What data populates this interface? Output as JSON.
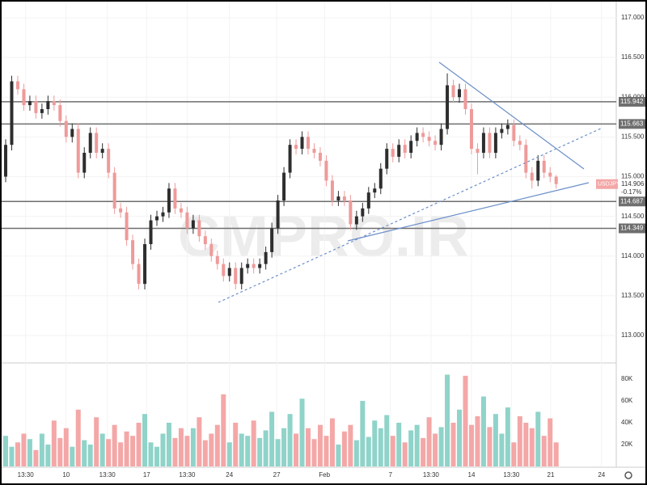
{
  "chart_data": {
    "type": "candlestick",
    "symbol": "USDJPY",
    "last_label": "114.906",
    "change_label": "-0.17%",
    "watermark": "CMPRO.IR",
    "open": [
      115.0,
      115.4,
      116.2,
      116.1,
      115.9,
      115.95,
      115.8,
      115.85,
      115.95,
      115.9,
      115.7,
      115.5,
      115.6,
      115.05,
      115.3,
      115.55,
      115.3,
      115.35,
      115.05,
      114.6,
      114.55,
      114.2,
      113.9,
      113.65,
      114.15,
      114.45,
      114.5,
      114.55,
      114.85,
      114.6,
      114.55,
      114.35,
      114.45,
      114.25,
      114.15,
      114.0,
      113.9,
      113.75,
      113.85,
      113.65,
      113.85,
      113.9,
      113.85,
      113.9,
      114.05,
      114.35,
      114.7,
      115.05,
      115.4,
      115.35,
      115.5,
      115.35,
      115.3,
      115.2,
      114.95,
      114.7,
      114.75,
      114.7,
      114.4,
      114.5,
      114.6,
      114.8,
      114.85,
      115.1,
      115.35,
      115.25,
      115.4,
      115.3,
      115.45,
      115.55,
      115.5,
      115.45,
      115.4,
      115.6,
      116.15,
      116.0,
      116.1,
      115.85,
      115.35,
      115.3,
      115.55,
      115.3,
      115.55,
      115.6,
      115.65,
      115.45,
      115.4,
      115.05,
      114.95,
      115.2,
      115.05,
      115.0
    ],
    "high": [
      115.47,
      116.27,
      116.27,
      116.17,
      116.02,
      116.02,
      115.92,
      116.02,
      116.02,
      115.97,
      115.77,
      115.67,
      115.67,
      115.37,
      115.62,
      115.62,
      115.42,
      115.42,
      115.12,
      114.67,
      114.62,
      114.27,
      113.97,
      114.22,
      114.52,
      114.57,
      114.62,
      114.92,
      114.92,
      114.67,
      114.62,
      114.52,
      114.52,
      114.32,
      114.22,
      114.07,
      113.97,
      113.92,
      113.92,
      113.92,
      113.97,
      113.97,
      113.97,
      114.12,
      114.42,
      114.77,
      115.12,
      115.47,
      115.47,
      115.57,
      115.57,
      115.42,
      115.37,
      115.27,
      115.02,
      114.82,
      114.82,
      114.77,
      114.57,
      114.67,
      114.87,
      114.92,
      115.17,
      115.42,
      115.42,
      115.47,
      115.47,
      115.52,
      115.62,
      115.62,
      115.57,
      115.52,
      115.67,
      116.3,
      116.22,
      116.17,
      116.17,
      115.92,
      115.42,
      115.62,
      115.62,
      115.62,
      115.67,
      115.72,
      115.72,
      115.52,
      115.47,
      115.12,
      115.27,
      115.27,
      115.12,
      115.02
    ],
    "low": [
      114.93,
      115.33,
      116.03,
      115.83,
      115.83,
      115.73,
      115.73,
      115.78,
      115.83,
      115.63,
      115.43,
      115.43,
      114.98,
      114.98,
      115.23,
      115.23,
      115.23,
      114.98,
      114.53,
      114.48,
      114.13,
      113.83,
      113.58,
      113.58,
      114.08,
      114.38,
      114.43,
      114.48,
      114.53,
      114.48,
      114.28,
      114.28,
      114.18,
      114.08,
      113.93,
      113.83,
      113.68,
      113.68,
      113.58,
      113.58,
      113.78,
      113.78,
      113.78,
      113.83,
      113.98,
      114.28,
      114.63,
      114.98,
      115.28,
      115.28,
      115.28,
      115.23,
      115.13,
      114.88,
      114.63,
      114.63,
      114.63,
      114.33,
      114.33,
      114.43,
      114.53,
      114.73,
      114.78,
      115.03,
      115.18,
      115.18,
      115.23,
      115.23,
      115.38,
      115.43,
      115.38,
      115.33,
      115.33,
      115.53,
      115.93,
      115.93,
      115.78,
      115.28,
      115.03,
      115.23,
      115.23,
      115.23,
      115.48,
      115.53,
      115.38,
      115.33,
      114.98,
      114.85,
      114.88,
      114.98,
      114.93,
      114.85
    ],
    "close": [
      115.4,
      116.2,
      116.1,
      115.9,
      115.95,
      115.8,
      115.85,
      115.95,
      115.9,
      115.7,
      115.5,
      115.6,
      115.05,
      115.3,
      115.55,
      115.3,
      115.35,
      115.05,
      114.6,
      114.55,
      114.2,
      113.9,
      113.65,
      114.15,
      114.45,
      114.5,
      114.55,
      114.85,
      114.6,
      114.55,
      114.35,
      114.45,
      114.25,
      114.15,
      114.0,
      113.9,
      113.75,
      113.85,
      113.65,
      113.85,
      113.9,
      113.85,
      113.9,
      114.05,
      114.35,
      114.7,
      115.05,
      115.4,
      115.35,
      115.5,
      115.35,
      115.3,
      115.2,
      114.95,
      114.7,
      114.75,
      114.7,
      114.4,
      114.5,
      114.6,
      114.8,
      114.85,
      115.1,
      115.35,
      115.25,
      115.4,
      115.3,
      115.45,
      115.55,
      115.5,
      115.45,
      115.4,
      115.6,
      116.15,
      116.0,
      116.1,
      115.85,
      115.35,
      115.3,
      115.55,
      115.3,
      115.55,
      115.6,
      115.65,
      115.45,
      115.4,
      115.05,
      114.95,
      115.2,
      115.05,
      115.0,
      114.906
    ],
    "up_color": "#2e2e2e",
    "down_color": "#ef9a9a",
    "ylim": [
      112.665,
      117.203
    ],
    "yticks": [
      {
        "value": 113,
        "label": "113.000"
      },
      {
        "value": 113.5,
        "label": "113.500"
      },
      {
        "value": 114,
        "label": "114.000"
      },
      {
        "value": 114.5,
        "label": "114.500"
      },
      {
        "value": 115,
        "label": "115.000"
      },
      {
        "value": 115.5,
        "label": "115.500"
      },
      {
        "value": 116,
        "label": "116.000"
      },
      {
        "value": 116.5,
        "label": "116.500"
      },
      {
        "value": 117,
        "label": "117.000"
      }
    ],
    "xlim": [
      -0.667,
      100.933
    ],
    "xticks": [
      {
        "value": 3.3,
        "label": "13:30"
      },
      {
        "value": 10,
        "label": "10"
      },
      {
        "value": 16.8,
        "label": "13:30"
      },
      {
        "value": 23.3,
        "label": "17"
      },
      {
        "value": 30,
        "label": "13:30"
      },
      {
        "value": 37,
        "label": "24"
      },
      {
        "value": 44.8,
        "label": "27"
      },
      {
        "value": 52.7,
        "label": "Feb"
      },
      {
        "value": 63.6,
        "label": "7"
      },
      {
        "value": 70.3,
        "label": "13:30"
      },
      {
        "value": 77,
        "label": "14"
      },
      {
        "value": 83.6,
        "label": "13:30"
      },
      {
        "value": 90.1,
        "label": "21"
      },
      {
        "value": 98.5,
        "label": "24"
      }
    ],
    "levels": [
      {
        "value": 115.942,
        "label": "115.942"
      },
      {
        "value": 115.663,
        "label": "115.663"
      },
      {
        "value": 114.687,
        "label": "114.687"
      },
      {
        "value": 114.349,
        "label": "114.349"
      }
    ],
    "volume": {
      "up_color": "#8fd3c9",
      "down_color": "#f4a7a7",
      "ylim": [
        0,
        94000
      ],
      "yticks": [
        {
          "value": 20000,
          "label": "20K"
        },
        {
          "value": 40000,
          "label": "40K"
        },
        {
          "value": 60000,
          "label": "60K"
        },
        {
          "value": 80000,
          "label": "80K"
        }
      ],
      "values": [
        28000,
        18000,
        22000,
        30000,
        25000,
        15000,
        30000,
        20000,
        42000,
        26000,
        35000,
        18000,
        52000,
        24000,
        20000,
        45000,
        30000,
        25000,
        38000,
        22000,
        32000,
        28000,
        40000,
        48000,
        22000,
        18000,
        30000,
        40000,
        26000,
        35000,
        28000,
        35000,
        45000,
        24000,
        30000,
        38000,
        66000,
        22000,
        40000,
        30000,
        28000,
        42000,
        26000,
        33000,
        50000,
        25000,
        35000,
        48000,
        30000,
        62000,
        35000,
        25000,
        38000,
        28000,
        44000,
        20000,
        32000,
        38000,
        24000,
        60000,
        27000,
        42000,
        35000,
        47000,
        28000,
        40000,
        22000,
        33000,
        38000,
        26000,
        45000,
        30000,
        36000,
        84000,
        40000,
        52000,
        83000,
        38000,
        46000,
        64000,
        36000,
        48000,
        30000,
        54000,
        22000,
        46000,
        40000,
        35000,
        50000,
        28000,
        44000,
        22000
      ]
    }
  }
}
